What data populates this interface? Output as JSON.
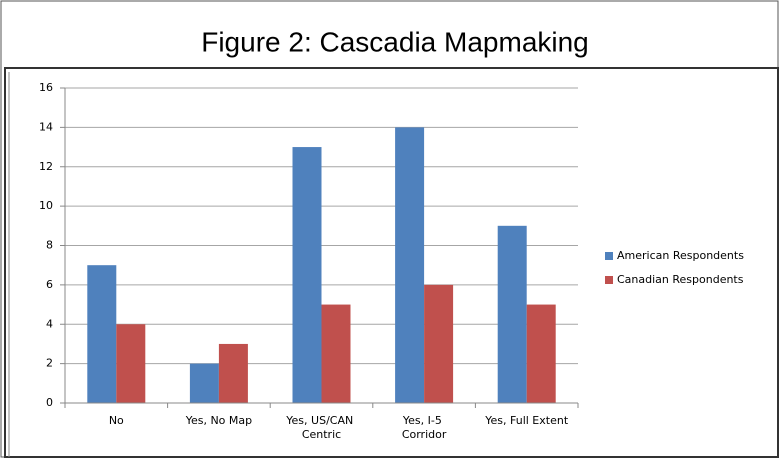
{
  "chart_data": {
    "type": "bar",
    "title": "Figure 2: Cascadia Mapmaking",
    "categories": [
      "No",
      "Yes, No Map",
      "Yes, US/CAN Centric",
      "Yes, I-5 Corridor",
      "Yes, Full Extent"
    ],
    "series": [
      {
        "name": "American Respondents",
        "color": "#4f81bd",
        "values": [
          7,
          2,
          13,
          14,
          9
        ]
      },
      {
        "name": "Canadian Respondents",
        "color": "#c0504d",
        "values": [
          4,
          3,
          5,
          6,
          5
        ]
      }
    ],
    "ylim": [
      0,
      16
    ],
    "yticks": [
      0,
      2,
      4,
      6,
      8,
      10,
      12,
      14,
      16
    ],
    "grid": true,
    "legend": "right"
  }
}
